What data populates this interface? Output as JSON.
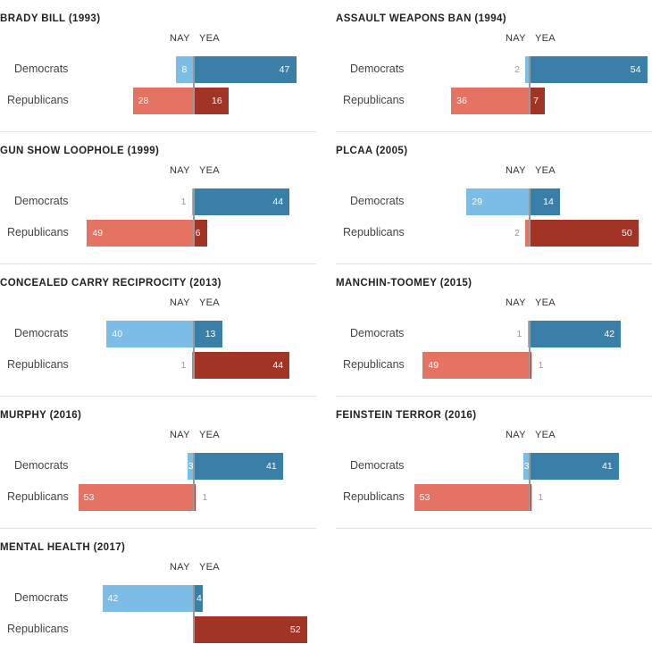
{
  "labels": {
    "nay": "NAY",
    "yea": "YEA",
    "democrats": "Democrats",
    "republicans": "Republicans"
  },
  "colors": {
    "dem_nay": "#7bbde6",
    "dem_yea": "#3a7fa8",
    "rep_nay": "#e57364",
    "rep_yea": "#a23425"
  },
  "chart_data": [
    {
      "type": "bar",
      "title": "BRADY BILL (1993)",
      "categories": [
        "Democrats",
        "Republicans"
      ],
      "series": [
        {
          "name": "NAY",
          "values": [
            8,
            28
          ]
        },
        {
          "name": "YEA",
          "values": [
            47,
            16
          ]
        }
      ]
    },
    {
      "type": "bar",
      "title": "ASSAULT WEAPONS BAN (1994)",
      "categories": [
        "Democrats",
        "Republicans"
      ],
      "series": [
        {
          "name": "NAY",
          "values": [
            2,
            36
          ]
        },
        {
          "name": "YEA",
          "values": [
            54,
            7
          ]
        }
      ]
    },
    {
      "type": "bar",
      "title": "GUN SHOW LOOPHOLE (1999)",
      "categories": [
        "Democrats",
        "Republicans"
      ],
      "series": [
        {
          "name": "NAY",
          "values": [
            1,
            49
          ]
        },
        {
          "name": "YEA",
          "values": [
            44,
            6
          ]
        }
      ]
    },
    {
      "type": "bar",
      "title": "PLCAA (2005)",
      "categories": [
        "Democrats",
        "Republicans"
      ],
      "series": [
        {
          "name": "NAY",
          "values": [
            29,
            2
          ]
        },
        {
          "name": "YEA",
          "values": [
            14,
            50
          ]
        }
      ]
    },
    {
      "type": "bar",
      "title": "CONCEALED CARRY RECIPROCITY (2013)",
      "categories": [
        "Democrats",
        "Republicans"
      ],
      "series": [
        {
          "name": "NAY",
          "values": [
            40,
            1
          ]
        },
        {
          "name": "YEA",
          "values": [
            13,
            44
          ]
        }
      ]
    },
    {
      "type": "bar",
      "title": "MANCHIN-TOOMEY (2015)",
      "categories": [
        "Democrats",
        "Republicans"
      ],
      "series": [
        {
          "name": "NAY",
          "values": [
            1,
            49
          ]
        },
        {
          "name": "YEA",
          "values": [
            42,
            1
          ]
        }
      ]
    },
    {
      "type": "bar",
      "title": "MURPHY (2016)",
      "categories": [
        "Democrats",
        "Republicans"
      ],
      "series": [
        {
          "name": "NAY",
          "values": [
            3,
            53
          ]
        },
        {
          "name": "YEA",
          "values": [
            41,
            1
          ]
        }
      ]
    },
    {
      "type": "bar",
      "title": "FEINSTEIN TERROR (2016)",
      "categories": [
        "Democrats",
        "Republicans"
      ],
      "series": [
        {
          "name": "NAY",
          "values": [
            3,
            53
          ]
        },
        {
          "name": "YEA",
          "values": [
            41,
            1
          ]
        }
      ]
    },
    {
      "type": "bar",
      "title": "MENTAL HEALTH (2017)",
      "categories": [
        "Democrats",
        "Republicans"
      ],
      "series": [
        {
          "name": "NAY",
          "values": [
            42,
            0
          ]
        },
        {
          "name": "YEA",
          "values": [
            4,
            52
          ]
        }
      ]
    }
  ]
}
